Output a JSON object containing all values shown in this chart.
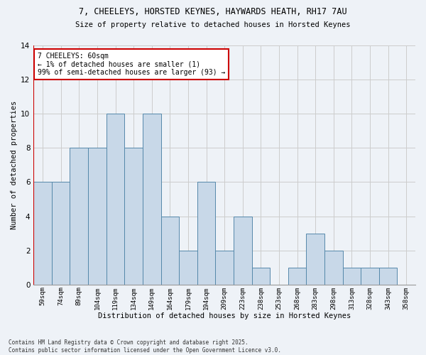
{
  "title_line1": "7, CHEELEYS, HORSTED KEYNES, HAYWARDS HEATH, RH17 7AU",
  "title_line2": "Size of property relative to detached houses in Horsted Keynes",
  "xlabel": "Distribution of detached houses by size in Horsted Keynes",
  "ylabel": "Number of detached properties",
  "categories": [
    "59sqm",
    "74sqm",
    "89sqm",
    "104sqm",
    "119sqm",
    "134sqm",
    "149sqm",
    "164sqm",
    "179sqm",
    "194sqm",
    "209sqm",
    "223sqm",
    "238sqm",
    "253sqm",
    "268sqm",
    "283sqm",
    "298sqm",
    "313sqm",
    "328sqm",
    "343sqm",
    "358sqm"
  ],
  "values": [
    6,
    6,
    8,
    8,
    10,
    8,
    10,
    4,
    2,
    6,
    2,
    4,
    1,
    0,
    1,
    3,
    2,
    1,
    1,
    1,
    0
  ],
  "bar_color": "#c8d8e8",
  "bar_edge_color": "#5588aa",
  "annotation_text": "7 CHEELEYS: 60sqm\n← 1% of detached houses are smaller (1)\n99% of semi-detached houses are larger (93) →",
  "annotation_box_color": "#ffffff",
  "annotation_border_color": "#cc0000",
  "ylim": [
    0,
    14
  ],
  "yticks": [
    0,
    2,
    4,
    6,
    8,
    10,
    12,
    14
  ],
  "grid_color": "#cccccc",
  "bg_color": "#eef2f7",
  "footer_line1": "Contains HM Land Registry data © Crown copyright and database right 2025.",
  "footer_line2": "Contains public sector information licensed under the Open Government Licence v3.0.",
  "highlight_line_color": "#cc0000"
}
